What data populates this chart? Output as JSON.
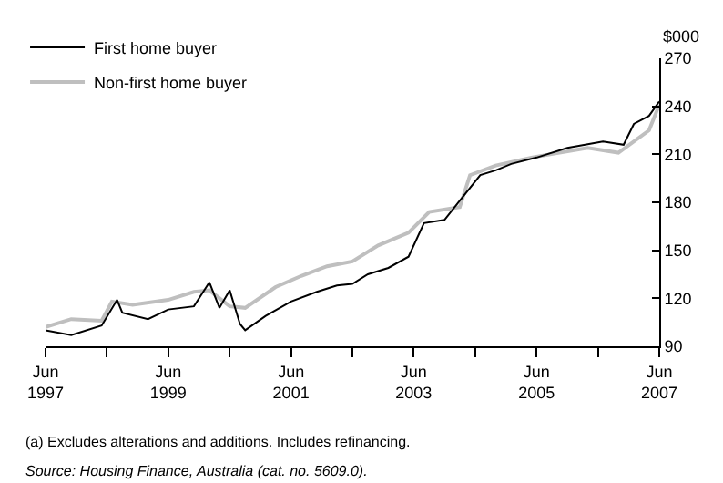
{
  "chart_data": {
    "type": "line",
    "ylabel": "$000",
    "legend": "top left",
    "marker": "none",
    "line_style": "solid",
    "xlim": [
      "1997-06",
      "2007-06"
    ],
    "xticks": [
      {
        "value": "1997-06",
        "label": "Jun\n1997"
      },
      {
        "value": "1998-06",
        "label": null
      },
      {
        "value": "1999-06",
        "label": "Jun\n1999"
      },
      {
        "value": "2000-06",
        "label": null
      },
      {
        "value": "2001-06",
        "label": "Jun\n2001"
      },
      {
        "value": "2002-06",
        "label": null
      },
      {
        "value": "2003-06",
        "label": "Jun\n2003"
      },
      {
        "value": "2004-06",
        "label": null
      },
      {
        "value": "2005-06",
        "label": "Jun\n2005"
      },
      {
        "value": "2006-06",
        "label": null
      },
      {
        "value": "2007-06",
        "label": "Jun\n2007"
      }
    ],
    "ylim": [
      90,
      270
    ],
    "yticks": [
      90,
      120,
      150,
      180,
      210,
      240,
      270
    ],
    "series": [
      {
        "name": "First home buyer",
        "color": "#000000",
        "x": [
          "1997-06",
          "1997-11",
          "1998-05",
          "1998-08",
          "1998-09",
          "1999-02",
          "1999-06",
          "1999-11",
          "2000-02",
          "2000-04",
          "2000-06",
          "2000-08",
          "2000-09",
          "2001-01",
          "2001-06",
          "2001-11",
          "2002-03",
          "2002-06",
          "2002-09",
          "2003-01",
          "2003-05",
          "2003-08",
          "2003-12",
          "2004-03",
          "2004-07",
          "2004-10",
          "2005-01",
          "2005-06",
          "2005-12",
          "2006-07",
          "2006-11",
          "2007-01",
          "2007-04",
          "2007-06"
        ],
        "values": [
          100,
          97,
          103,
          119,
          111,
          107,
          113,
          115,
          130,
          114,
          125,
          104,
          100,
          109,
          118,
          124,
          128,
          129,
          135,
          139,
          146,
          167,
          169,
          181,
          197,
          200,
          204,
          208,
          214,
          218,
          216,
          229,
          234,
          243
        ]
      },
      {
        "name": "Non-first home buyer",
        "color": "#bfbfbf",
        "x": [
          "1997-06",
          "1997-11",
          "1998-05",
          "1998-07",
          "1998-11",
          "1999-06",
          "1999-11",
          "2000-02",
          "2000-06",
          "2000-09",
          "2001-03",
          "2001-08",
          "2002-01",
          "2002-06",
          "2002-11",
          "2003-05",
          "2003-09",
          "2004-03",
          "2004-05",
          "2004-10",
          "2005-05",
          "2006-04",
          "2006-10",
          "2007-04",
          "2007-06"
        ],
        "values": [
          102,
          107,
          106,
          118,
          116,
          119,
          124,
          125,
          115,
          114,
          127,
          134,
          140,
          143,
          153,
          161,
          174,
          177,
          197,
          203,
          208,
          214,
          211,
          225,
          241
        ]
      }
    ],
    "annotations": [
      "(a) Excludes alterations and additions. Includes refinancing.",
      "Source: Housing Finance, Australia (cat. no. 5609.0)."
    ]
  }
}
